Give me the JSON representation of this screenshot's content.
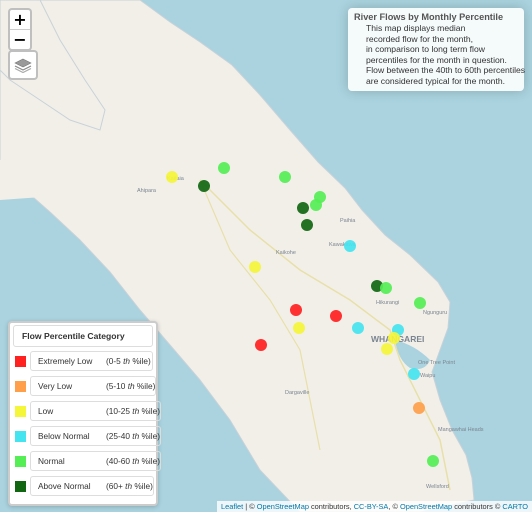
{
  "zoom": {
    "in_label": "+",
    "out_label": "−"
  },
  "info": {
    "title": "River Flows by Monthly Percentile",
    "lines": [
      "This map displays median",
      "recorded flow for the month,",
      "in comparison to long term flow",
      "percentiles for the month in question.",
      "Flow between the 40th to 60th percentiles",
      "are considered typical for the month."
    ]
  },
  "legend": {
    "title": "Flow Percentile Category",
    "items": [
      {
        "label": "Extremely Low",
        "range_start": "(0-5",
        "th": "th",
        "range_end": "%ile)",
        "color": "#ff2020"
      },
      {
        "label": "Very Low",
        "range_start": "(5-10",
        "th": "th",
        "range_end": "%ile)",
        "color": "#ff9f4a"
      },
      {
        "label": "Low",
        "range_start": "(10-25",
        "th": "th",
        "range_end": "%ile)",
        "color": "#f5f53a"
      },
      {
        "label": "Below Normal",
        "range_start": "(25-40",
        "th": "th",
        "range_end": "%ile)",
        "color": "#44e4f0"
      },
      {
        "label": "Normal",
        "range_start": "(40-60",
        "th": "th",
        "range_end": "%ile)",
        "color": "#55ee55"
      },
      {
        "label": "Above Normal",
        "range_start": "(60+",
        "th": "th",
        "range_end": "%ile)",
        "color": "#116611"
      }
    ]
  },
  "places": [
    "Kaitaia",
    "Ahipara",
    "Paihia",
    "Kawakawa",
    "Kaikohe",
    "Hikurangi",
    "Ngunguru",
    "WHANGAREI",
    "One Tree Point",
    "Waipu",
    "Dargaville",
    "Mangawhai Heads",
    "Wellsford"
  ],
  "attribution": {
    "leaflet": "Leaflet",
    "sep1": " | © ",
    "osm": "OpenStreetMap",
    "contrib1": " contributors, ",
    "ccbysa": "CC-BY-SA",
    "sep2": ", © ",
    "osm2": "OpenStreetMap",
    "contrib2": " contributors © ",
    "carto": "CARTO"
  },
  "sites": [
    {
      "category": "Normal",
      "color": "#55ee55"
    },
    {
      "category": "Low",
      "color": "#f5f53a"
    },
    {
      "category": "Above Normal",
      "color": "#116611"
    },
    {
      "category": "Normal",
      "color": "#55ee55"
    },
    {
      "category": "Normal",
      "color": "#55ee55"
    },
    {
      "category": "Normal",
      "color": "#55ee55"
    },
    {
      "category": "Above Normal",
      "color": "#116611"
    },
    {
      "category": "Above Normal",
      "color": "#116611"
    },
    {
      "category": "Below Normal",
      "color": "#44e4f0"
    },
    {
      "category": "Low",
      "color": "#f5f53a"
    },
    {
      "category": "Above Normal",
      "color": "#116611"
    },
    {
      "category": "Normal",
      "color": "#55ee55"
    },
    {
      "category": "Normal",
      "color": "#55ee55"
    },
    {
      "category": "Extremely Low",
      "color": "#ff2020"
    },
    {
      "category": "Extremely Low",
      "color": "#ff2020"
    },
    {
      "category": "Low",
      "color": "#f5f53a"
    },
    {
      "category": "Below Normal",
      "color": "#44e4f0"
    },
    {
      "category": "Below Normal",
      "color": "#44e4f0"
    },
    {
      "category": "Low",
      "color": "#f5f53a"
    },
    {
      "category": "Low",
      "color": "#f5f53a"
    },
    {
      "category": "Extremely Low",
      "color": "#ff2020"
    },
    {
      "category": "Below Normal",
      "color": "#44e4f0"
    },
    {
      "category": "Very Low",
      "color": "#ff9f4a"
    },
    {
      "category": "Normal",
      "color": "#55ee55"
    }
  ]
}
